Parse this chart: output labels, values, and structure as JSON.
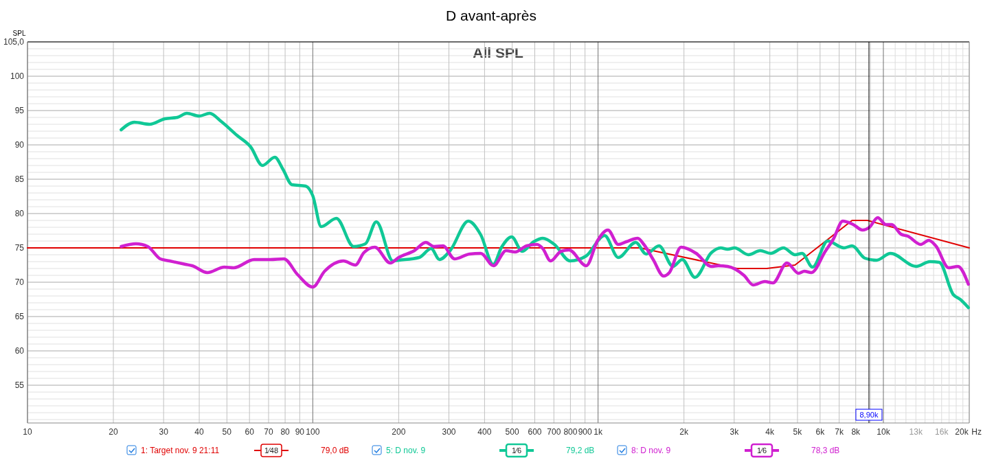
{
  "chart_data": {
    "type": "line",
    "title": "D avant-après",
    "subtitle": "All SPL",
    "ylabel": "SPL",
    "log": "x",
    "grid": true,
    "legend": "bottom",
    "line_style": "solid",
    "xlim": [
      10,
      20000
    ],
    "ylim": [
      49.5,
      105
    ],
    "xticks": [
      10,
      20,
      30,
      40,
      50,
      60,
      70,
      80,
      90,
      100,
      200,
      300,
      400,
      500,
      600,
      700,
      800,
      900,
      {
        "value": 1000,
        "label": "1k"
      },
      {
        "value": 2000,
        "label": "2k"
      },
      {
        "value": 3000,
        "label": "3k"
      },
      {
        "value": 4000,
        "label": "4k"
      },
      {
        "value": 5000,
        "label": "5k"
      },
      {
        "value": 6000,
        "label": "6k"
      },
      {
        "value": 7000,
        "label": "7k"
      },
      {
        "value": 8000,
        "label": "8k"
      },
      {
        "value": 9000,
        "label": null
      },
      {
        "value": 10000,
        "label": "10k"
      },
      {
        "value": 11000,
        "label": null
      },
      {
        "value": 12000,
        "label": null
      },
      {
        "value": 13000,
        "label": "13k"
      },
      {
        "value": 14000,
        "label": null
      },
      {
        "value": 15000,
        "label": null
      },
      {
        "value": 16000,
        "label": "16k"
      },
      {
        "value": 17000,
        "label": null
      },
      {
        "value": 18000,
        "label": null
      },
      {
        "value": 19000,
        "label": null
      },
      {
        "value": 20000,
        "label": "20k"
      }
    ],
    "xlabel": "Hz",
    "yticks": [
      55,
      60,
      65,
      70,
      75,
      80,
      85,
      90,
      95,
      100,
      {
        "value": 105,
        "label": "105,0"
      }
    ],
    "ref_lines": [
      {
        "axis": "x",
        "value": 8900,
        "label": "8,90k",
        "color": "#000000"
      }
    ],
    "annotations": [
      "1⁄48",
      "79,0 dB",
      "1⁄6",
      "79,2 dB",
      "1⁄6",
      "78,3 dB"
    ],
    "series": [
      {
        "name": "1: Target nov. 9 21:11",
        "color": "#e00000",
        "x": [
          10,
          1400,
          3070,
          3900,
          4900,
          7770,
          8800,
          20000
        ],
        "values": [
          75,
          75,
          72,
          72,
          72.5,
          79,
          79,
          75
        ]
      },
      {
        "name": "5: D nov. 9",
        "color": "#10c896",
        "x": [
          21.3,
          23.7,
          26.8,
          30.3,
          33.5,
          36.2,
          40,
          43.5,
          47.8,
          54.2,
          60.6,
          66.6,
          73.6,
          78.7,
          84.5,
          94.4,
          100,
          107,
          121,
          139,
          153,
          167,
          191,
          200,
          236,
          260,
          278,
          303,
          351,
          388,
          429,
          459,
          498,
          542,
          595,
          640,
          703,
          798,
          907,
          1054,
          1177,
          1355,
          1474,
          1635,
          1830,
          1972,
          2186,
          2495,
          2689,
          2845,
          3010,
          3367,
          3702,
          4026,
          4463,
          4905,
          5187,
          5647,
          6377,
          7276,
          7766,
          8612,
          9461,
          10590,
          13020,
          14570,
          15700,
          17580,
          18600,
          19860
        ],
        "values": [
          92.2,
          93.3,
          93.0,
          93.8,
          94.0,
          94.6,
          94.2,
          94.6,
          93.4,
          91.4,
          89.7,
          87.0,
          88.2,
          86.4,
          84.2,
          84.0,
          82.6,
          78.1,
          79.3,
          75.2,
          75.6,
          78.8,
          73.1,
          73.2,
          73.6,
          74.9,
          73.3,
          74.6,
          78.9,
          76.9,
          72.6,
          75.1,
          76.6,
          74.5,
          75.9,
          76.4,
          75.5,
          73.1,
          73.8,
          76.8,
          73.6,
          75.8,
          74.1,
          75.3,
          72.3,
          73.3,
          70.7,
          74.3,
          75.0,
          74.8,
          75.0,
          74.0,
          74.6,
          74.2,
          75.0,
          74.0,
          74.2,
          72.2,
          76.0,
          75.0,
          75.3,
          73.5,
          73.2,
          74.2,
          72.3,
          73.0,
          72.9,
          68.2,
          67.5,
          66.3
        ]
      },
      {
        "name": "8: D nov. 9",
        "color": "#d020d0",
        "x": [
          21.3,
          24.0,
          26.4,
          29.2,
          31.5,
          35.8,
          37.8,
          42.7,
          49.0,
          52.8,
          62.3,
          70.9,
          79.2,
          88.5,
          100,
          110,
          128,
          141,
          151,
          165,
          187,
          200,
          227,
          249,
          266,
          286,
          314,
          354,
          388,
          430,
          476,
          512,
          562,
          611,
          640,
          682,
          741,
          791,
          909,
          997,
          1083,
          1177,
          1256,
          1377,
          1447,
          1560,
          1697,
          1778,
          1954,
          2208,
          2495,
          2640,
          2845,
          3245,
          3498,
          3841,
          4102,
          4592,
          5043,
          5284,
          5593,
          6257,
          6683,
          7207,
          7840,
          8453,
          8936,
          9550,
          10200,
          10690,
          11520,
          12190,
          13510,
          14430,
          15270,
          16940,
          18250,
          19860
        ],
        "values": [
          75.2,
          75.6,
          75.2,
          73.4,
          73.1,
          72.6,
          72.4,
          71.4,
          72.2,
          72.1,
          73.3,
          73.3,
          73.4,
          71.1,
          69.3,
          71.6,
          73.1,
          72.5,
          74.3,
          75.1,
          72.8,
          73.6,
          74.6,
          75.8,
          75.2,
          75.3,
          73.4,
          74.1,
          74.2,
          72.4,
          74.6,
          74.4,
          75.3,
          75.5,
          74.9,
          73.1,
          74.5,
          74.7,
          72.4,
          76.1,
          77.6,
          75.5,
          75.9,
          76.4,
          75.5,
          73.3,
          70.9,
          71.4,
          75.1,
          74.2,
          72.3,
          72.4,
          72.3,
          71.0,
          69.6,
          70.1,
          69.9,
          72.8,
          71.3,
          71.6,
          71.4,
          74.5,
          76.3,
          78.9,
          78.4,
          77.6,
          78.0,
          79.4,
          78.4,
          78.4,
          77.0,
          76.7,
          75.5,
          76.1,
          75.3,
          72.1,
          72.3,
          69.7
        ]
      }
    ]
  }
}
